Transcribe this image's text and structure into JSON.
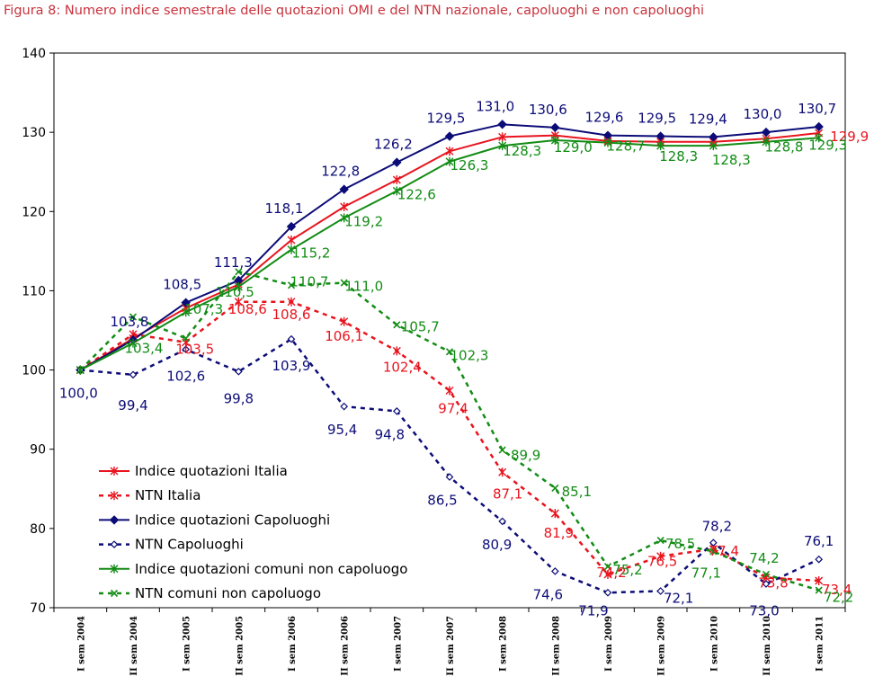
{
  "figure_title": "Figura 8: Numero indice semestrale delle quotazioni OMI e del NTN nazionale, capoluoghi e non capoluoghi",
  "chart_data": {
    "type": "line",
    "title": "Figura 8: Numero indice semestrale delle quotazioni OMI e del NTN nazionale, capoluoghi e non capoluoghi",
    "xlabel": "",
    "ylabel": "",
    "ylim": [
      70,
      140
    ],
    "yticks": [
      "70",
      "80",
      "90",
      "100",
      "110",
      "120",
      "130",
      "140"
    ],
    "categories": [
      "I sem 2004",
      "II sem 2004",
      "I sem 2005",
      "II sem 2005",
      "I sem 2006",
      "II sem 2006",
      "I sem 2007",
      "II sem 2007",
      "I sem 2008",
      "II sem 2008",
      "I sem 2009",
      "II sem 2009",
      "I sem 2010",
      "II sem 2010",
      "I sem 2011"
    ],
    "grid": false,
    "legend_position": "bottom-left",
    "series": [
      {
        "name": "Indice quotazioni Italia",
        "color": "#e8141e",
        "line_style": "solid",
        "marker": "asterisk",
        "values": [
          100.0,
          104.0,
          107.8,
          110.8,
          116.4,
          120.6,
          124.0,
          127.6,
          129.4,
          129.6,
          128.9,
          128.8,
          128.8,
          129.2,
          129.9
        ],
        "labels": [
          "",
          "",
          "",
          "",
          "",
          "",
          "",
          "",
          "",
          "",
          "",
          "",
          "",
          "",
          "129,9"
        ]
      },
      {
        "name": "NTN Italia",
        "color": "#e8141e",
        "line_style": "dashed",
        "marker": "asterisk",
        "values": [
          100.0,
          104.5,
          103.5,
          108.6,
          108.6,
          106.1,
          102.4,
          97.4,
          87.1,
          81.9,
          74.2,
          76.5,
          77.4,
          73.8,
          73.4
        ],
        "labels": [
          "",
          "",
          "103,5",
          "108,6",
          "108,6",
          "106,1",
          "102,4",
          "97,4",
          "87,1",
          "81,9",
          "74,2",
          "76,5",
          "77,4",
          "73,8",
          "73,4"
        ]
      },
      {
        "name": "Indice quotazioni Capoluoghi",
        "color": "#0c0c78",
        "line_style": "solid",
        "marker": "diamond",
        "values": [
          100.0,
          103.8,
          108.5,
          111.3,
          118.1,
          122.8,
          126.2,
          129.5,
          131.0,
          130.6,
          129.6,
          129.5,
          129.4,
          130.0,
          130.7
        ],
        "labels": [
          "100,0",
          "103,8",
          "108,5",
          "111,3",
          "118,1",
          "122,8",
          "126,2",
          "129,5",
          "131,0",
          "130,6",
          "129,6",
          "129,5",
          "129,4",
          "130,0",
          "130,7"
        ]
      },
      {
        "name": "NTN Capoluoghi",
        "color": "#0c0c78",
        "line_style": "dashed",
        "marker": "open-diamond",
        "values": [
          100.0,
          99.4,
          102.6,
          99.8,
          103.9,
          95.4,
          94.8,
          86.5,
          80.9,
          74.6,
          71.9,
          72.1,
          78.2,
          73.0,
          76.1
        ],
        "labels": [
          "",
          "99,4",
          "102,6",
          "99,8",
          "103,9",
          "95,4",
          "94,8",
          "86,5",
          "80,9",
          "74,6",
          "71,9",
          "72,1",
          "78,2",
          "73,0",
          "76,1"
        ]
      },
      {
        "name": "Indice quotazioni comuni non capoluogo",
        "color": "#128c14",
        "line_style": "solid",
        "marker": "asterisk",
        "values": [
          100.0,
          103.4,
          107.3,
          110.5,
          115.2,
          119.2,
          122.6,
          126.3,
          128.3,
          129.0,
          128.7,
          128.3,
          128.3,
          128.8,
          129.3
        ],
        "labels": [
          "",
          "103,4",
          "107,3",
          "110,5",
          "115,2",
          "119,2",
          "122,6",
          "126,3",
          "128,3",
          "129,0",
          "128,7",
          "128,3",
          "128,3",
          "128,8",
          "129,3"
        ]
      },
      {
        "name": "NTN comuni non capoluogo",
        "color": "#128c14",
        "line_style": "dashed",
        "marker": "x",
        "values": [
          100.0,
          106.7,
          104.0,
          112.4,
          110.7,
          111.0,
          105.7,
          102.3,
          89.9,
          85.1,
          75.2,
          78.5,
          77.1,
          74.2,
          72.2
        ],
        "labels": [
          "",
          "",
          "",
          "",
          "110,7",
          "111,0",
          "105,7",
          "102,3",
          "89,9",
          "85,1",
          "75,2",
          "78,5",
          "77,1",
          "74,2",
          "72,2"
        ]
      }
    ]
  }
}
